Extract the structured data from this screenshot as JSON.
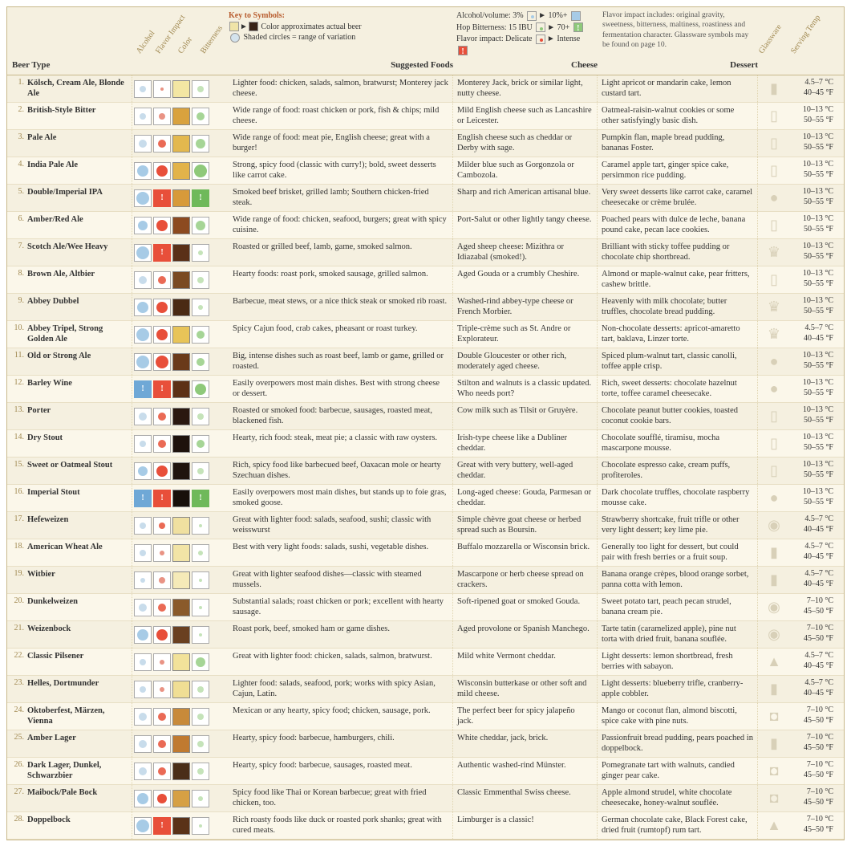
{
  "header": {
    "beer_type_label": "Beer Type",
    "diag_labels": [
      "Alcohol",
      "Flavor Impact",
      "Color",
      "Bitterness"
    ],
    "suggested_foods_label": "Suggested Foods",
    "cheese_label": "Cheese",
    "dessert_label": "Dessert",
    "glassware_label": "Glassware",
    "serving_temp_label": "Serving Temp",
    "key": {
      "title": "Key to Symbols:",
      "line1": "Color approximates actual beer",
      "line2": "Shaded circles = range of variation",
      "sw_light": "#f0e4a8",
      "sw_dark": "#3a2418"
    },
    "abv": {
      "l1a": "Alcohol/volume:",
      "l1b": "3%",
      "l1c": "10%+",
      "l2a": "Hop Bitterness:",
      "l2b": "15 IBU",
      "l2c": "70+",
      "l3a": "Flavor impact:",
      "l3b": "Delicate",
      "l3c": "Intense",
      "box_low": "#ffffff",
      "box_alc": "#a7cbe6",
      "box_hop": "#8fc97a",
      "box_imp": "#e84f3a"
    },
    "flavor_note": "Flavor impact includes: original gravity, sweetness, bitterness, maltiness, roastiness and fermentation character. Glassware symbols may be found on page 10."
  },
  "colors": {
    "dot_blue_lg": "#a7cbe6",
    "dot_blue_sm": "#c8dceb",
    "dot_red_lg": "#e84f3a",
    "dot_red_md": "#ea6a55",
    "dot_red_sm": "#e99384",
    "dot_grn_lg": "#8fc97a",
    "dot_grn_md": "#a6d596",
    "dot_grn_sm": "#c5e3b9",
    "bang_red": "#e84f3a",
    "bang_grn": "#6fb95a",
    "bang_blue": "#6fa8d6"
  },
  "glass_glyphs": {
    "shaker": "▮",
    "pint": "▯",
    "goblet": "♛",
    "snifter": "●",
    "pilsner": "▲",
    "mug": "◘",
    "weizen": "◉"
  },
  "rows": [
    {
      "num": "1.",
      "name": "Kölsch, Cream Ale, Blonde Ale",
      "alc": {
        "t": "dot",
        "c": "dot_blue_sm",
        "s": 8
      },
      "imp": {
        "t": "dot",
        "c": "dot_red_sm",
        "s": 4
      },
      "col": "#f3e6a3",
      "bit": {
        "t": "dot",
        "c": "dot_grn_sm",
        "s": 8
      },
      "food": "Lighter food: chicken, salads, salmon, bratwurst; Monterey jack cheese.",
      "cheese": "Monterey Jack, brick or similar light, nutty cheese.",
      "dessert": "Light apricot or mandarin cake, lemon custard tart.",
      "glass": "shaker",
      "temp_c": "4.5–7 °C",
      "temp_f": "40–45 °F"
    },
    {
      "num": "2.",
      "name": "British-Style Bitter",
      "alc": {
        "t": "dot",
        "c": "dot_blue_sm",
        "s": 8
      },
      "imp": {
        "t": "dot",
        "c": "dot_red_sm",
        "s": 8
      },
      "col": "#d9a23e",
      "bit": {
        "t": "dot",
        "c": "dot_grn_md",
        "s": 10
      },
      "food": "Wide range of food: roast chicken or pork, fish & chips; mild cheese.",
      "cheese": "Mild English cheese such as Lancashire or Leicester.",
      "dessert": "Oatmeal-raisin-walnut cookies or some other satisfyingly basic dish.",
      "glass": "pint",
      "temp_c": "10–13 °C",
      "temp_f": "50–55 °F"
    },
    {
      "num": "3.",
      "name": "Pale Ale",
      "alc": {
        "t": "dot",
        "c": "dot_blue_sm",
        "s": 10
      },
      "imp": {
        "t": "dot",
        "c": "dot_red_md",
        "s": 10
      },
      "col": "#e3b84e",
      "bit": {
        "t": "dot",
        "c": "dot_grn_md",
        "s": 12
      },
      "food": "Wide range of food: meat pie, English cheese; great with a burger!",
      "cheese": "English cheese such as cheddar or Derby with sage.",
      "dessert": "Pumpkin flan, maple bread pudding, bananas Foster.",
      "glass": "pint",
      "temp_c": "10–13 °C",
      "temp_f": "50–55 °F"
    },
    {
      "num": "4.",
      "name": "India Pale Ale",
      "alc": {
        "t": "dot",
        "c": "dot_blue_lg",
        "s": 14
      },
      "imp": {
        "t": "dot",
        "c": "dot_red_lg",
        "s": 14
      },
      "col": "#e2b34a",
      "bit": {
        "t": "dot",
        "c": "dot_grn_lg",
        "s": 16
      },
      "food": "Strong, spicy food (classic with curry!); bold, sweet desserts like carrot cake.",
      "cheese": "Milder blue such as Gorgonzola or Cambozola.",
      "dessert": "Caramel apple tart, ginger spice cake, persimmon rice pudding.",
      "glass": "pint",
      "temp_c": "10–13 °C",
      "temp_f": "50–55 °F"
    },
    {
      "num": "5.",
      "name": "Double/Imperial IPA",
      "alc": {
        "t": "dot",
        "c": "dot_blue_lg",
        "s": 16
      },
      "imp": {
        "t": "bang",
        "c": "bang_red"
      },
      "col": "#d79a3a",
      "bit": {
        "t": "bang",
        "c": "bang_grn"
      },
      "food": "Smoked beef brisket, grilled lamb; Southern chicken-fried steak.",
      "cheese": "Sharp and rich American artisanal blue.",
      "dessert": "Very sweet desserts like carrot cake, caramel cheesecake or crème brulée.",
      "glass": "snifter",
      "temp_c": "10–13 °C",
      "temp_f": "50–55 °F"
    },
    {
      "num": "6.",
      "name": "Amber/Red Ale",
      "alc": {
        "t": "dot",
        "c": "dot_blue_lg",
        "s": 12
      },
      "imp": {
        "t": "dot",
        "c": "dot_red_lg",
        "s": 14
      },
      "col": "#8c4a20",
      "bit": {
        "t": "dot",
        "c": "dot_grn_md",
        "s": 12
      },
      "food": "Wide range of food: chicken, seafood, burgers; great with spicy cuisine.",
      "cheese": "Port-Salut or other lightly tangy cheese.",
      "dessert": "Poached pears with dulce de leche, banana pound cake, pecan lace cookies.",
      "glass": "pint",
      "temp_c": "10–13 °C",
      "temp_f": "50–55 °F"
    },
    {
      "num": "7.",
      "name": "Scotch Ale/Wee Heavy",
      "alc": {
        "t": "dot",
        "c": "dot_blue_lg",
        "s": 16
      },
      "imp": {
        "t": "bang",
        "c": "bang_red"
      },
      "col": "#5a3018",
      "bit": {
        "t": "dot",
        "c": "dot_grn_sm",
        "s": 6
      },
      "food": "Roasted or grilled beef, lamb, game, smoked salmon.",
      "cheese": "Aged sheep cheese: Mizithra or Idiazabal (smoked!).",
      "dessert": "Brilliant with sticky toffee pudding or chocolate chip shortbread.",
      "glass": "goblet",
      "temp_c": "10–13 °C",
      "temp_f": "50–55 °F"
    },
    {
      "num": "8.",
      "name": "Brown Ale, Altbier",
      "alc": {
        "t": "dot",
        "c": "dot_blue_sm",
        "s": 10
      },
      "imp": {
        "t": "dot",
        "c": "dot_red_md",
        "s": 10
      },
      "col": "#7a4a22",
      "bit": {
        "t": "dot",
        "c": "dot_grn_sm",
        "s": 8
      },
      "food": "Hearty foods: roast pork, smoked sausage, grilled salmon.",
      "cheese": "Aged Gouda or a crumbly Cheshire.",
      "dessert": "Almond or maple-walnut cake, pear fritters, cashew brittle.",
      "glass": "pint",
      "temp_c": "10–13 °C",
      "temp_f": "50–55 °F"
    },
    {
      "num": "9.",
      "name": "Abbey Dubbel",
      "alc": {
        "t": "dot",
        "c": "dot_blue_lg",
        "s": 14
      },
      "imp": {
        "t": "dot",
        "c": "dot_red_lg",
        "s": 14
      },
      "col": "#4a2a14",
      "bit": {
        "t": "dot",
        "c": "dot_grn_sm",
        "s": 6
      },
      "food": "Barbecue, meat stews, or a nice thick steak or smoked rib roast.",
      "cheese": "Washed-rind abbey-type cheese or French Morbier.",
      "dessert": "Heavenly with milk chocolate; butter truffles, chocolate bread pudding.",
      "glass": "goblet",
      "temp_c": "10–13 °C",
      "temp_f": "50–55 °F"
    },
    {
      "num": "10.",
      "name": "Abbey Tripel, Strong Golden Ale",
      "alc": {
        "t": "dot",
        "c": "dot_blue_lg",
        "s": 16
      },
      "imp": {
        "t": "dot",
        "c": "dot_red_lg",
        "s": 14
      },
      "col": "#e8c458",
      "bit": {
        "t": "dot",
        "c": "dot_grn_md",
        "s": 10
      },
      "food": "Spicy Cajun food, crab cakes, pheasant or roast turkey.",
      "cheese": "Triple-crème such as St. Andre or Explorateur.",
      "dessert": "Non-chocolate desserts: apricot-amaretto tart, baklava, Linzer torte.",
      "glass": "goblet",
      "temp_c": "4.5–7 °C",
      "temp_f": "40–45 °F"
    },
    {
      "num": "11.",
      "name": "Old or Strong Ale",
      "alc": {
        "t": "dot",
        "c": "dot_blue_lg",
        "s": 16
      },
      "imp": {
        "t": "dot",
        "c": "dot_red_lg",
        "s": 16
      },
      "col": "#6a3a1a",
      "bit": {
        "t": "dot",
        "c": "dot_grn_md",
        "s": 10
      },
      "food": "Big, intense dishes such as roast beef, lamb or game, grilled or roasted.",
      "cheese": "Double Gloucester or other rich, moderately aged cheese.",
      "dessert": "Spiced plum-walnut tart, classic canolli, toffee apple crisp.",
      "glass": "snifter",
      "temp_c": "10–13 °C",
      "temp_f": "50–55 °F"
    },
    {
      "num": "12.",
      "name": "Barley Wine",
      "alc": {
        "t": "bang",
        "c": "bang_blue"
      },
      "imp": {
        "t": "bang",
        "c": "bang_red"
      },
      "col": "#5c3016",
      "bit": {
        "t": "dot",
        "c": "dot_grn_lg",
        "s": 14
      },
      "food": "Easily overpowers most main dishes. Best with strong cheese or dessert.",
      "cheese": "Stilton and walnuts is a classic updated. Who needs port?",
      "dessert": "Rich, sweet desserts: chocolate hazelnut torte, toffee caramel cheesecake.",
      "glass": "snifter",
      "temp_c": "10–13 °C",
      "temp_f": "50–55 °F"
    },
    {
      "num": "13.",
      "name": "Porter",
      "alc": {
        "t": "dot",
        "c": "dot_blue_sm",
        "s": 10
      },
      "imp": {
        "t": "dot",
        "c": "dot_red_md",
        "s": 10
      },
      "col": "#2a1810",
      "bit": {
        "t": "dot",
        "c": "dot_grn_sm",
        "s": 8
      },
      "food": "Roasted or smoked food: barbecue, sausages, roasted meat, blackened fish.",
      "cheese": "Cow milk such as Tilsit or Gruyère.",
      "dessert": "Chocolate peanut butter cookies, toasted coconut cookie bars.",
      "glass": "pint",
      "temp_c": "10–13 °C",
      "temp_f": "50–55 °F"
    },
    {
      "num": "14.",
      "name": "Dry Stout",
      "alc": {
        "t": "dot",
        "c": "dot_blue_sm",
        "s": 8
      },
      "imp": {
        "t": "dot",
        "c": "dot_red_md",
        "s": 10
      },
      "col": "#1e120c",
      "bit": {
        "t": "dot",
        "c": "dot_grn_md",
        "s": 10
      },
      "food": "Hearty, rich food: steak, meat pie; a classic with raw oysters.",
      "cheese": "Irish-type cheese like a Dubliner cheddar.",
      "dessert": "Chocolate soufflé, tiramisu, mocha mascarpone mousse.",
      "glass": "pint",
      "temp_c": "10–13 °C",
      "temp_f": "50–55 °F"
    },
    {
      "num": "15.",
      "name": "Sweet or Oatmeal Stout",
      "alc": {
        "t": "dot",
        "c": "dot_blue_lg",
        "s": 12
      },
      "imp": {
        "t": "dot",
        "c": "dot_red_lg",
        "s": 14
      },
      "col": "#20140e",
      "bit": {
        "t": "dot",
        "c": "dot_grn_sm",
        "s": 8
      },
      "food": "Rich, spicy food like barbecued beef, Oaxacan mole or hearty Szechuan dishes.",
      "cheese": "Great with very buttery, well-aged cheddar.",
      "dessert": "Chocolate espresso cake, cream puffs, profiteroles.",
      "glass": "pint",
      "temp_c": "10–13 °C",
      "temp_f": "50–55 °F"
    },
    {
      "num": "16.",
      "name": "Imperial Stout",
      "alc": {
        "t": "bang",
        "c": "bang_blue"
      },
      "imp": {
        "t": "bang",
        "c": "bang_red"
      },
      "col": "#18100a",
      "bit": {
        "t": "bang",
        "c": "bang_grn"
      },
      "food": "Easily overpowers most main dishes, but stands up to foie gras, smoked goose.",
      "cheese": "Long-aged cheese: Gouda, Parmesan or cheddar.",
      "dessert": "Dark chocolate truffles, chocolate raspberry mousse cake.",
      "glass": "snifter",
      "temp_c": "10–13 °C",
      "temp_f": "50–55 °F"
    },
    {
      "num": "17.",
      "name": "Hefeweizen",
      "alc": {
        "t": "dot",
        "c": "dot_blue_sm",
        "s": 8
      },
      "imp": {
        "t": "dot",
        "c": "dot_red_md",
        "s": 8
      },
      "col": "#f0e0a0",
      "bit": {
        "t": "dot",
        "c": "dot_grn_sm",
        "s": 4
      },
      "food": "Great with lighter food: salads, seafood, sushi; classic with weisswurst",
      "cheese": "Simple chèvre goat cheese or herbed spread such as Boursin.",
      "dessert": "Strawberry shortcake, fruit trifle or other very light dessert; key lime pie.",
      "glass": "weizen",
      "temp_c": "4.5–7 °C",
      "temp_f": "40–45 °F"
    },
    {
      "num": "18.",
      "name": "American Wheat Ale",
      "alc": {
        "t": "dot",
        "c": "dot_blue_sm",
        "s": 8
      },
      "imp": {
        "t": "dot",
        "c": "dot_red_sm",
        "s": 6
      },
      "col": "#f2e4a6",
      "bit": {
        "t": "dot",
        "c": "dot_grn_sm",
        "s": 6
      },
      "food": "Best with very light foods: salads, sushi, vegetable dishes.",
      "cheese": "Buffalo mozzarella or Wisconsin brick.",
      "dessert": "Generally too light for dessert, but could pair with fresh berries or a fruit soup.",
      "glass": "shaker",
      "temp_c": "4.5–7 °C",
      "temp_f": "40–45 °F"
    },
    {
      "num": "19.",
      "name": "Witbier",
      "alc": {
        "t": "dot",
        "c": "dot_blue_sm",
        "s": 6
      },
      "imp": {
        "t": "dot",
        "c": "dot_red_sm",
        "s": 8
      },
      "col": "#f5eab8",
      "bit": {
        "t": "dot",
        "c": "dot_grn_sm",
        "s": 4
      },
      "food": "Great with lighter seafood dishes—classic with steamed mussels.",
      "cheese": "Mascarpone or herb cheese spread on crackers.",
      "dessert": "Banana orange crèpes, blood orange sorbet, panna cotta with lemon.",
      "glass": "shaker",
      "temp_c": "4.5–7 °C",
      "temp_f": "40–45 °F"
    },
    {
      "num": "20.",
      "name": "Dunkelweizen",
      "alc": {
        "t": "dot",
        "c": "dot_blue_sm",
        "s": 10
      },
      "imp": {
        "t": "dot",
        "c": "dot_red_md",
        "s": 10
      },
      "col": "#8a5a2a",
      "bit": {
        "t": "dot",
        "c": "dot_grn_sm",
        "s": 4
      },
      "food": "Substantial salads; roast chicken or pork; excellent with hearty sausage.",
      "cheese": "Soft-ripened goat or smoked Gouda.",
      "dessert": "Sweet potato tart, peach pecan strudel, banana cream pie.",
      "glass": "weizen",
      "temp_c": "7–10 °C",
      "temp_f": "45–50 °F"
    },
    {
      "num": "21.",
      "name": "Weizenbock",
      "alc": {
        "t": "dot",
        "c": "dot_blue_lg",
        "s": 14
      },
      "imp": {
        "t": "dot",
        "c": "dot_red_lg",
        "s": 14
      },
      "col": "#6a4020",
      "bit": {
        "t": "dot",
        "c": "dot_grn_sm",
        "s": 4
      },
      "food": "Roast pork, beef, smoked ham or game dishes.",
      "cheese": "Aged provolone or Spanish Manchego.",
      "dessert": "Tarte tatin (caramelized apple), pine nut torta with dried fruit, banana souflée.",
      "glass": "weizen",
      "temp_c": "7–10 °C",
      "temp_f": "45–50 °F"
    },
    {
      "num": "22.",
      "name": "Classic Pilsener",
      "alc": {
        "t": "dot",
        "c": "dot_blue_sm",
        "s": 8
      },
      "imp": {
        "t": "dot",
        "c": "dot_red_sm",
        "s": 6
      },
      "col": "#f2e29a",
      "bit": {
        "t": "dot",
        "c": "dot_grn_md",
        "s": 12
      },
      "food": "Great with lighter food: chicken, salads, salmon, bratwurst.",
      "cheese": "Mild white Vermont cheddar.",
      "dessert": "Light desserts: lemon shortbread, fresh berries with sabayon.",
      "glass": "pilsner",
      "temp_c": "4.5–7 °C",
      "temp_f": "40–45 °F"
    },
    {
      "num": "23.",
      "name": "Helles, Dortmunder",
      "alc": {
        "t": "dot",
        "c": "dot_blue_sm",
        "s": 8
      },
      "imp": {
        "t": "dot",
        "c": "dot_red_sm",
        "s": 6
      },
      "col": "#f0de94",
      "bit": {
        "t": "dot",
        "c": "dot_grn_sm",
        "s": 8
      },
      "food": "Lighter food: salads, seafood, pork; works with spicy Asian, Cajun, Latin.",
      "cheese": "Wisconsin butterkase or other soft and mild cheese.",
      "dessert": "Light desserts: blueberry trifle, cranberry-apple cobbler.",
      "glass": "shaker",
      "temp_c": "4.5–7 °C",
      "temp_f": "40–45 °F"
    },
    {
      "num": "24.",
      "name": "Oktoberfest, Märzen, Vienna",
      "alc": {
        "t": "dot",
        "c": "dot_blue_sm",
        "s": 10
      },
      "imp": {
        "t": "dot",
        "c": "dot_red_md",
        "s": 10
      },
      "col": "#c88a3a",
      "bit": {
        "t": "dot",
        "c": "dot_grn_sm",
        "s": 8
      },
      "food": "Mexican or any hearty, spicy food; chicken, sausage, pork.",
      "cheese": "The perfect beer for spicy jalapeño jack.",
      "dessert": "Mango or coconut flan, almond biscotti, spice cake with pine nuts.",
      "glass": "mug",
      "temp_c": "7–10 °C",
      "temp_f": "45–50 °F"
    },
    {
      "num": "25.",
      "name": "Amber Lager",
      "alc": {
        "t": "dot",
        "c": "dot_blue_sm",
        "s": 10
      },
      "imp": {
        "t": "dot",
        "c": "dot_red_md",
        "s": 10
      },
      "col": "#c07a30",
      "bit": {
        "t": "dot",
        "c": "dot_grn_sm",
        "s": 8
      },
      "food": "Hearty, spicy food: barbecue, hamburgers, chili.",
      "cheese": "White cheddar, jack, brick.",
      "dessert": "Passionfruit bread pudding, pears poached in doppelbock.",
      "glass": "shaker",
      "temp_c": "7–10 °C",
      "temp_f": "45–50 °F"
    },
    {
      "num": "26.",
      "name": "Dark Lager, Dunkel, Schwarzbier",
      "alc": {
        "t": "dot",
        "c": "dot_blue_sm",
        "s": 10
      },
      "imp": {
        "t": "dot",
        "c": "dot_red_md",
        "s": 10
      },
      "col": "#4a2e18",
      "bit": {
        "t": "dot",
        "c": "dot_grn_sm",
        "s": 8
      },
      "food": "Hearty, spicy food: barbecue, sausages, roasted meat.",
      "cheese": "Authentic washed-rind Münster.",
      "dessert": "Pomegranate tart with walnuts, candied ginger pear cake.",
      "glass": "mug",
      "temp_c": "7–10 °C",
      "temp_f": "45–50 °F"
    },
    {
      "num": "27.",
      "name": "Maibock/Pale Bock",
      "alc": {
        "t": "dot",
        "c": "dot_blue_lg",
        "s": 14
      },
      "imp": {
        "t": "dot",
        "c": "dot_red_lg",
        "s": 12
      },
      "col": "#d6a044",
      "bit": {
        "t": "dot",
        "c": "dot_grn_sm",
        "s": 6
      },
      "food": "Spicy food like Thai or Korean barbecue; great with fried chicken, too.",
      "cheese": "Classic Emmenthal Swiss cheese.",
      "dessert": "Apple almond strudel, white chocolate cheesecake, honey-walnut souflée.",
      "glass": "mug",
      "temp_c": "7–10 °C",
      "temp_f": "45–50 °F"
    },
    {
      "num": "28.",
      "name": "Doppelbock",
      "alc": {
        "t": "dot",
        "c": "dot_blue_lg",
        "s": 16
      },
      "imp": {
        "t": "bang",
        "c": "bang_red"
      },
      "col": "#5a3218",
      "bit": {
        "t": "dot",
        "c": "dot_grn_sm",
        "s": 4
      },
      "food": "Rich roasty foods like duck or roasted pork shanks; great with cured meats.",
      "cheese": "Limburger is a classic!",
      "dessert": "German chocolate cake, Black Forest cake, dried fruit (rumtopf) rum tart.",
      "glass": "pilsner",
      "temp_c": "7–10 °C",
      "temp_f": "45–50 °F"
    }
  ]
}
